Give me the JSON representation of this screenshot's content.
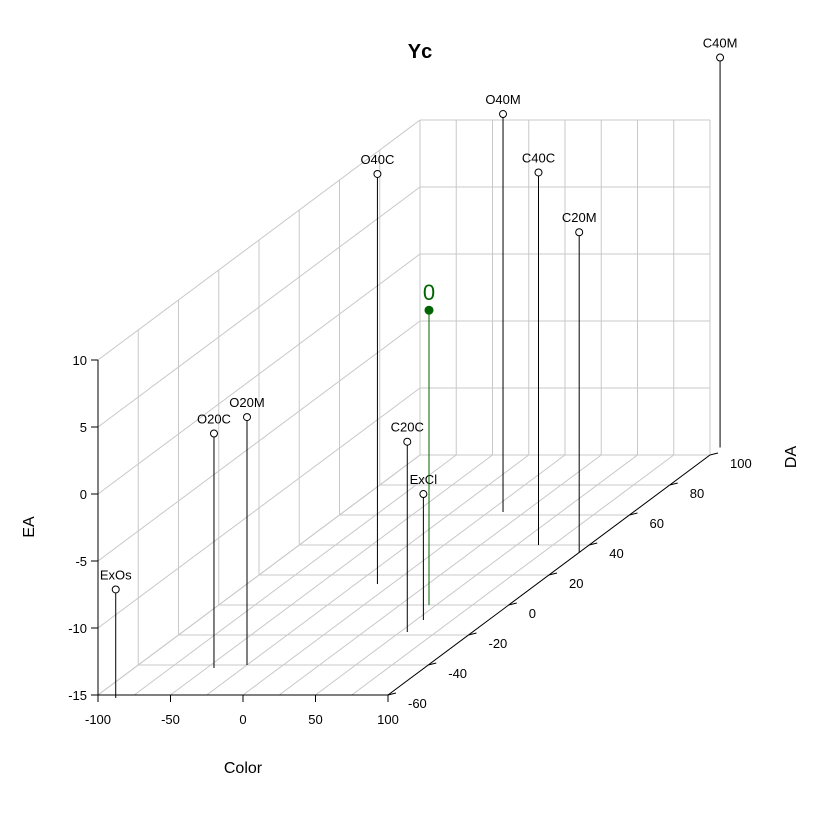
{
  "chart_data": {
    "type": "scatter",
    "title": "Yc",
    "xlabel": "Color",
    "ylabel": "DA",
    "zlabel": "EA",
    "xlim": [
      -100,
      100
    ],
    "ylim": [
      -60,
      100
    ],
    "zlim": [
      -15,
      10
    ],
    "xticks": [
      "-100",
      "-50",
      "0",
      "50",
      "100"
    ],
    "yticks": [
      "-60",
      "-40",
      "-20",
      "0",
      "20",
      "40",
      "60",
      "80",
      "100"
    ],
    "zticks": [
      "-15",
      "-10",
      "-5",
      "0",
      "5",
      "10"
    ],
    "grid": true,
    "points": [
      {
        "label": "ExOs",
        "x": -85,
        "y": -62,
        "z": -6.9
      },
      {
        "label": "O20C",
        "x": -45,
        "y": -42,
        "z": 2.5
      },
      {
        "label": "O20M",
        "x": -25,
        "y": -40,
        "z": 3.5
      },
      {
        "label": "C20C",
        "x": 55,
        "y": -18,
        "z": -0.8
      },
      {
        "label": "ExCl",
        "x": 55,
        "y": -10,
        "z": -5.6
      },
      {
        "label": "O40C",
        "x": -10,
        "y": 14,
        "z": 15.6
      },
      {
        "label": "O40M",
        "x": 10,
        "y": 62,
        "z": 14.7
      },
      {
        "label": "C40C",
        "x": 65,
        "y": 40,
        "z": 12.8
      },
      {
        "label": "C20M",
        "x": 100,
        "y": 35,
        "z": 8.9
      },
      {
        "label": "C40M",
        "x": 100,
        "y": 105,
        "z": 14.1
      }
    ],
    "highlight": {
      "label": "0",
      "x": 45,
      "y": 0,
      "z": 7.0,
      "color": "#006400"
    },
    "point_color": "#000000",
    "grid_color": "#c8c8c8"
  }
}
